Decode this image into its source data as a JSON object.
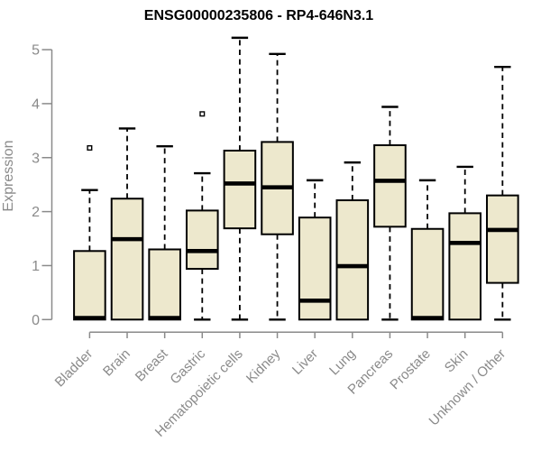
{
  "chart_data": {
    "type": "boxplot",
    "title": "ENSG00000235806 - RP4-646N3.1",
    "xlabel": "",
    "ylabel": "Expression",
    "ylim": [
      0,
      5
    ],
    "yticks": [
      0,
      1,
      2,
      3,
      4,
      5
    ],
    "grid": false,
    "legend": null,
    "categories": [
      "Bladder",
      "Brain",
      "Breast",
      "Gastric",
      "Hematopoietic cells",
      "Kidney",
      "Liver",
      "Lung",
      "Pancreas",
      "Prostate",
      "Skin",
      "Unknown / Other"
    ],
    "boxes": [
      {
        "category": "Bladder",
        "whisker_low": 0,
        "q1": 0,
        "median": 0.03,
        "q3": 1.27,
        "whisker_high": 2.4,
        "outliers": [
          3.18
        ]
      },
      {
        "category": "Brain",
        "whisker_low": 0,
        "q1": 0,
        "median": 1.49,
        "q3": 2.24,
        "whisker_high": 3.54,
        "outliers": []
      },
      {
        "category": "Breast",
        "whisker_low": 0,
        "q1": 0,
        "median": 0.03,
        "q3": 1.3,
        "whisker_high": 3.21,
        "outliers": []
      },
      {
        "category": "Gastric",
        "whisker_low": 0,
        "q1": 0.94,
        "median": 1.27,
        "q3": 2.02,
        "whisker_high": 2.71,
        "outliers": [
          3.81
        ]
      },
      {
        "category": "Hematopoietic cells",
        "whisker_low": 0,
        "q1": 1.69,
        "median": 2.52,
        "q3": 3.13,
        "whisker_high": 5.22,
        "outliers": []
      },
      {
        "category": "Kidney",
        "whisker_low": 0,
        "q1": 1.58,
        "median": 2.45,
        "q3": 3.29,
        "whisker_high": 4.92,
        "outliers": []
      },
      {
        "category": "Liver",
        "whisker_low": 0,
        "q1": 0,
        "median": 0.35,
        "q3": 1.89,
        "whisker_high": 2.58,
        "outliers": []
      },
      {
        "category": "Lung",
        "whisker_low": 0,
        "q1": 0,
        "median": 0.99,
        "q3": 2.21,
        "whisker_high": 2.91,
        "outliers": []
      },
      {
        "category": "Pancreas",
        "whisker_low": 0,
        "q1": 1.72,
        "median": 2.57,
        "q3": 3.23,
        "whisker_high": 3.94,
        "outliers": []
      },
      {
        "category": "Prostate",
        "whisker_low": 0,
        "q1": 0,
        "median": 0.03,
        "q3": 1.68,
        "whisker_high": 2.58,
        "outliers": []
      },
      {
        "category": "Skin",
        "whisker_low": 0,
        "q1": 0,
        "median": 1.42,
        "q3": 1.97,
        "whisker_high": 2.83,
        "outliers": []
      },
      {
        "category": "Unknown / Other",
        "whisker_low": 0,
        "q1": 0.68,
        "median": 1.66,
        "q3": 2.3,
        "whisker_high": 4.68,
        "outliers": []
      }
    ],
    "colors": {
      "box_fill": "#EDE8CD",
      "box_border": "#000000",
      "median": "#000000",
      "whisker": "#000000",
      "outlier": "#000000",
      "axis": "#8A8A8A",
      "tick_text": "#8A8A8A",
      "title_text": "#000000",
      "background": "#FFFFFF"
    }
  }
}
